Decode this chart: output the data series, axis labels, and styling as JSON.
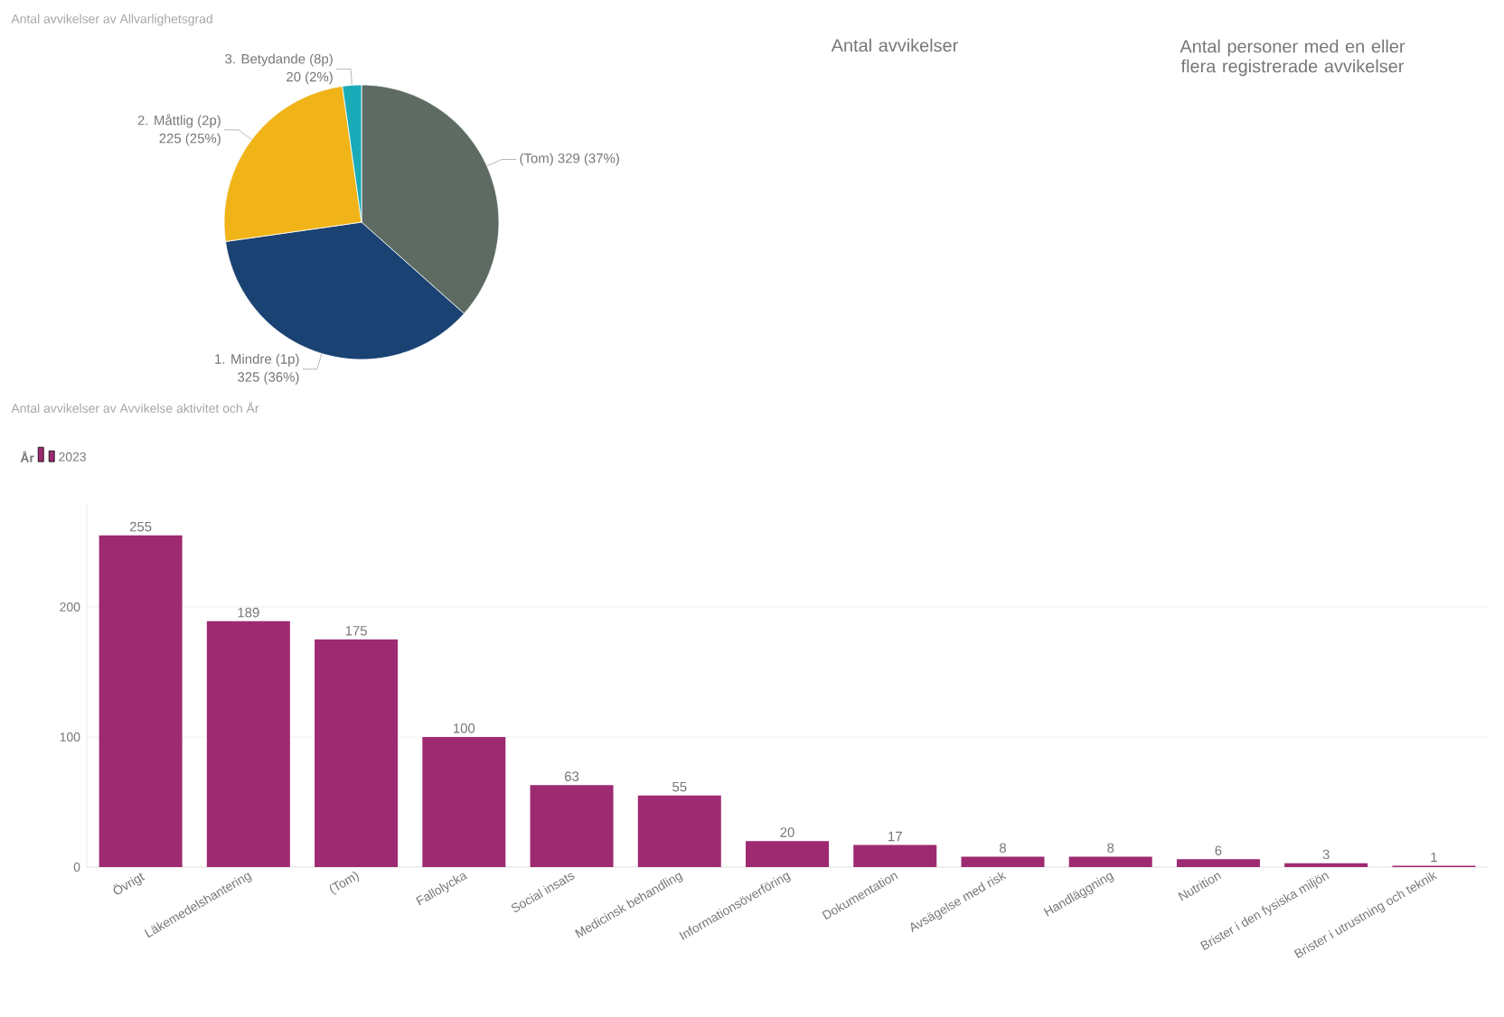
{
  "chart_data": [
    {
      "type": "pie",
      "title": "Antal avvikelser av Allvarlighetsgrad",
      "categories": [
        "(Tom)",
        "1. Mindre (1p)",
        "2. Måttlig (2p)",
        "3. Betydande (8p)"
      ],
      "values": [
        329,
        325,
        225,
        20
      ],
      "value_labels": [
        "329 (37%)",
        "325 (36%)",
        "225 (25%)",
        "20 (2%)"
      ],
      "colors": [
        "#5d6b62",
        "#1a4273",
        "#f0b418",
        "#1aabb8"
      ]
    },
    {
      "type": "other",
      "annotations": [
        "Antal avvikelser",
        "Antal personer med en eller flera registrerade avvikelser"
      ]
    },
    {
      "type": "bar",
      "title": "Antal avvikelser av Avvikelse aktivitet och År",
      "legend_title": "År",
      "legend": "top left",
      "grid": "y",
      "data_labels": true,
      "categories": [
        "Övrigt",
        "Läkemedelshantering",
        "(Tom)",
        "Fallolycka",
        "Social insats",
        "Medicinsk behandling",
        "Informationsöverföring",
        "Dokumentation",
        "Avsägelse med risk",
        "Handläggning",
        "Nutrition",
        "Brister i den fysiska miljön",
        "Brister i utrustning och teknik"
      ],
      "series": [
        {
          "name": "2023",
          "color": "#9e2a72",
          "values": [
            255,
            189,
            175,
            100,
            63,
            55,
            20,
            17,
            8,
            8,
            6,
            3,
            1
          ]
        }
      ],
      "ylim": [
        0,
        280
      ],
      "yticks": [
        0,
        100,
        200
      ]
    }
  ]
}
